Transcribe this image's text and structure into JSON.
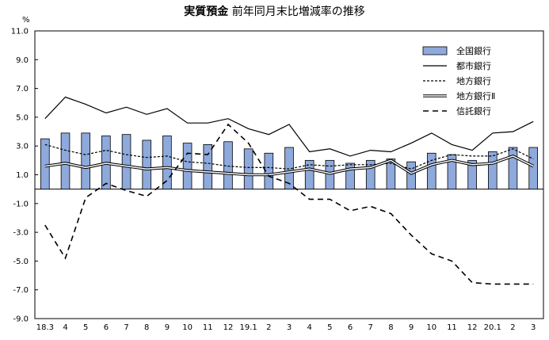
{
  "title_bold": "実質預金",
  "title_rest": "前年同月末比増減率の推移",
  "chart_data": {
    "type": "bar",
    "yunit": "%",
    "ylim": [
      -9,
      11
    ],
    "yticks": [
      "11.0",
      "9.0",
      "7.0",
      "5.0",
      "3.0",
      "1.0",
      "-1.0",
      "-3.0",
      "-5.0",
      "-7.0",
      "-9.0"
    ],
    "categories": [
      "18.3",
      "4",
      "5",
      "6",
      "7",
      "8",
      "9",
      "10",
      "11",
      "12",
      "19.1",
      "2",
      "3",
      "4",
      "5",
      "6",
      "7",
      "8",
      "9",
      "10",
      "11",
      "12",
      "20.1",
      "2",
      "3"
    ],
    "legend_placement": "top-right",
    "grid": false,
    "series": [
      {
        "name": "全国銀行",
        "type": "bar",
        "color": "#8ea9db",
        "values": [
          3.5,
          3.9,
          3.9,
          3.7,
          3.8,
          3.4,
          3.7,
          3.2,
          3.1,
          3.3,
          2.8,
          2.5,
          2.9,
          2.0,
          2.0,
          1.8,
          2.0,
          2.1,
          1.9,
          2.5,
          2.4,
          2.0,
          2.6,
          2.9,
          2.9
        ]
      },
      {
        "name": "都市銀行",
        "type": "line",
        "style": "solid",
        "values": [
          4.9,
          6.4,
          5.9,
          5.3,
          5.7,
          5.2,
          5.6,
          4.6,
          4.6,
          4.9,
          4.2,
          3.8,
          4.5,
          2.6,
          2.8,
          2.3,
          2.7,
          2.6,
          3.2,
          3.9,
          3.1,
          2.7,
          3.9,
          4.0,
          4.7
        ]
      },
      {
        "name": "地方銀行",
        "type": "line",
        "style": "dotted",
        "values": [
          3.1,
          2.7,
          2.4,
          2.7,
          2.4,
          2.2,
          2.3,
          1.9,
          1.8,
          1.6,
          1.5,
          1.5,
          1.4,
          1.7,
          1.6,
          1.7,
          1.7,
          1.8,
          1.4,
          2.0,
          2.4,
          2.3,
          2.3,
          2.8,
          2.1
        ]
      },
      {
        "name": "地方銀行Ⅱ",
        "type": "line",
        "style": "double",
        "values": [
          1.6,
          1.8,
          1.5,
          1.8,
          1.6,
          1.4,
          1.5,
          1.3,
          1.2,
          1.1,
          1.0,
          1.0,
          1.2,
          1.4,
          1.1,
          1.4,
          1.5,
          2.0,
          1.1,
          1.7,
          2.0,
          1.7,
          1.8,
          2.3,
          1.6
        ]
      },
      {
        "name": "信託銀行",
        "type": "line",
        "style": "dashed",
        "values": [
          -2.5,
          -4.8,
          -0.6,
          0.4,
          -0.1,
          -0.5,
          0.6,
          2.5,
          2.4,
          4.5,
          3.2,
          0.9,
          0.4,
          -0.7,
          -0.7,
          -1.5,
          -1.2,
          -1.7,
          -3.2,
          -4.5,
          -5.0,
          -6.5,
          -6.6,
          -6.6,
          -6.6
        ]
      }
    ]
  }
}
